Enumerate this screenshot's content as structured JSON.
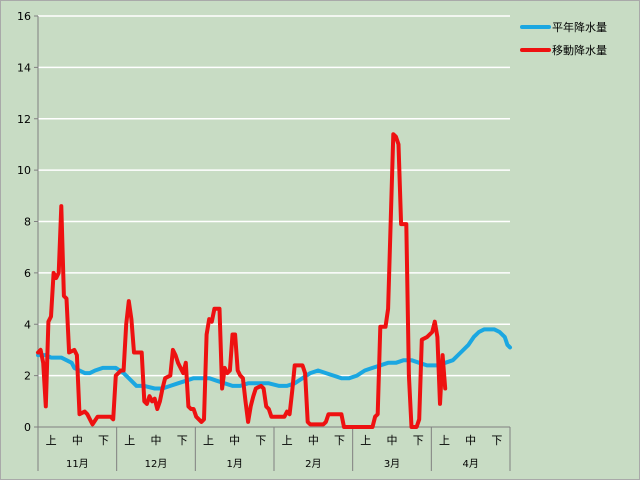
{
  "chart_data": {
    "type": "line",
    "title": "",
    "xlabel": "",
    "ylabel": "",
    "ylim": [
      0,
      16
    ],
    "yticks": [
      0,
      2,
      4,
      6,
      8,
      10,
      12,
      14,
      16
    ],
    "grid": true,
    "legend_position": "top-right",
    "background_color": "#c8dcc4",
    "months": [
      "11月",
      "12月",
      "1月",
      "2月",
      "3月",
      "4月"
    ],
    "periods": [
      "上",
      "中",
      "下"
    ],
    "series": [
      {
        "name": "平年降水量",
        "color": "#1ba7e1",
        "values": [
          [
            0,
            2.8
          ],
          [
            3,
            2.8
          ],
          [
            5,
            2.7
          ],
          [
            7,
            2.7
          ],
          [
            9,
            2.7
          ],
          [
            11,
            2.6
          ],
          [
            13,
            2.5
          ],
          [
            14,
            2.3
          ],
          [
            16,
            2.2
          ],
          [
            18,
            2.1
          ],
          [
            20,
            2.1
          ],
          [
            22,
            2.2
          ],
          [
            25,
            2.3
          ],
          [
            30,
            2.3
          ],
          [
            33,
            2.1
          ],
          [
            36,
            1.8
          ],
          [
            38,
            1.6
          ],
          [
            41,
            1.6
          ],
          [
            45,
            1.5
          ],
          [
            48,
            1.5
          ],
          [
            51,
            1.6
          ],
          [
            54,
            1.7
          ],
          [
            57,
            1.8
          ],
          [
            60,
            1.9
          ],
          [
            63,
            1.9
          ],
          [
            66,
            1.9
          ],
          [
            69,
            1.8
          ],
          [
            72,
            1.7
          ],
          [
            75,
            1.6
          ],
          [
            78,
            1.6
          ],
          [
            81,
            1.7
          ],
          [
            85,
            1.7
          ],
          [
            89,
            1.7
          ],
          [
            93,
            1.6
          ],
          [
            96,
            1.6
          ],
          [
            99,
            1.7
          ],
          [
            102,
            1.9
          ],
          [
            105,
            2.1
          ],
          [
            108,
            2.2
          ],
          [
            111,
            2.1
          ],
          [
            114,
            2.0
          ],
          [
            117,
            1.9
          ],
          [
            120,
            1.9
          ],
          [
            123,
            2.0
          ],
          [
            126,
            2.2
          ],
          [
            129,
            2.3
          ],
          [
            132,
            2.4
          ],
          [
            135,
            2.5
          ],
          [
            138,
            2.5
          ],
          [
            141,
            2.6
          ],
          [
            144,
            2.6
          ],
          [
            147,
            2.5
          ],
          [
            150,
            2.4
          ],
          [
            154,
            2.4
          ],
          [
            157,
            2.5
          ],
          [
            160,
            2.6
          ],
          [
            163,
            2.9
          ],
          [
            166,
            3.2
          ],
          [
            168,
            3.5
          ],
          [
            170,
            3.7
          ],
          [
            172,
            3.8
          ],
          [
            176,
            3.8
          ],
          [
            178,
            3.7
          ],
          [
            180,
            3.5
          ],
          [
            181,
            3.2
          ],
          [
            182,
            3.1
          ]
        ]
      },
      {
        "name": "移動降水量",
        "color": "#ee1111",
        "values": [
          [
            0,
            2.9
          ],
          [
            1,
            3.0
          ],
          [
            2,
            2.5
          ],
          [
            3,
            0.8
          ],
          [
            4,
            4.1
          ],
          [
            5,
            4.3
          ],
          [
            6,
            6.0
          ],
          [
            7,
            5.8
          ],
          [
            8,
            6.0
          ],
          [
            9,
            8.6
          ],
          [
            10,
            5.1
          ],
          [
            11,
            5.0
          ],
          [
            12,
            2.9
          ],
          [
            14,
            3.0
          ],
          [
            15,
            2.8
          ],
          [
            16,
            0.5
          ],
          [
            18,
            0.6
          ],
          [
            19,
            0.5
          ],
          [
            21,
            0.1
          ],
          [
            23,
            0.4
          ],
          [
            28,
            0.4
          ],
          [
            29,
            0.3
          ],
          [
            30,
            2.0
          ],
          [
            32,
            2.2
          ],
          [
            33,
            2.2
          ],
          [
            34,
            4.0
          ],
          [
            35,
            4.9
          ],
          [
            36,
            4.2
          ],
          [
            37,
            2.9
          ],
          [
            40,
            2.9
          ],
          [
            41,
            1.0
          ],
          [
            42,
            0.9
          ],
          [
            43,
            1.2
          ],
          [
            44,
            1.0
          ],
          [
            45,
            1.1
          ],
          [
            46,
            0.7
          ],
          [
            47,
            1.0
          ],
          [
            48,
            1.5
          ],
          [
            49,
            1.9
          ],
          [
            51,
            2.0
          ],
          [
            52,
            3.0
          ],
          [
            53,
            2.8
          ],
          [
            54,
            2.5
          ],
          [
            56,
            2.1
          ],
          [
            57,
            2.5
          ],
          [
            58,
            0.8
          ],
          [
            59,
            0.7
          ],
          [
            60,
            0.7
          ],
          [
            61,
            0.4
          ],
          [
            63,
            0.2
          ],
          [
            64,
            0.3
          ],
          [
            65,
            3.6
          ],
          [
            66,
            4.2
          ],
          [
            67,
            4.1
          ],
          [
            68,
            4.6
          ],
          [
            70,
            4.6
          ],
          [
            71,
            1.5
          ],
          [
            72,
            2.3
          ],
          [
            73,
            2.1
          ],
          [
            74,
            2.2
          ],
          [
            75,
            3.6
          ],
          [
            76,
            3.6
          ],
          [
            77,
            2.2
          ],
          [
            78,
            2.0
          ],
          [
            79,
            1.9
          ],
          [
            80,
            1.0
          ],
          [
            81,
            0.2
          ],
          [
            82,
            0.8
          ],
          [
            83,
            1.2
          ],
          [
            84,
            1.5
          ],
          [
            86,
            1.6
          ],
          [
            87,
            1.5
          ],
          [
            88,
            0.8
          ],
          [
            89,
            0.7
          ],
          [
            90,
            0.4
          ],
          [
            95,
            0.4
          ],
          [
            96,
            0.6
          ],
          [
            97,
            0.5
          ],
          [
            98,
            1.4
          ],
          [
            99,
            2.4
          ],
          [
            102,
            2.4
          ],
          [
            103,
            2.1
          ],
          [
            104,
            0.2
          ],
          [
            105,
            0.1
          ],
          [
            110,
            0.1
          ],
          [
            111,
            0.2
          ],
          [
            112,
            0.5
          ],
          [
            117,
            0.5
          ],
          [
            118,
            0.0
          ],
          [
            129,
            0.0
          ],
          [
            130,
            0.4
          ],
          [
            131,
            0.5
          ],
          [
            132,
            3.9
          ],
          [
            134,
            3.9
          ],
          [
            135,
            4.6
          ],
          [
            136,
            8.0
          ],
          [
            137,
            11.4
          ],
          [
            138,
            11.3
          ],
          [
            139,
            11.0
          ],
          [
            140,
            7.9
          ],
          [
            142,
            7.9
          ],
          [
            143,
            2.0
          ],
          [
            144,
            0.0
          ],
          [
            146,
            0.0
          ],
          [
            147,
            0.3
          ],
          [
            148,
            3.4
          ],
          [
            150,
            3.5
          ],
          [
            152,
            3.7
          ],
          [
            153,
            4.1
          ],
          [
            154,
            3.5
          ],
          [
            155,
            0.9
          ],
          [
            156,
            2.8
          ],
          [
            157,
            1.5
          ]
        ]
      }
    ]
  }
}
